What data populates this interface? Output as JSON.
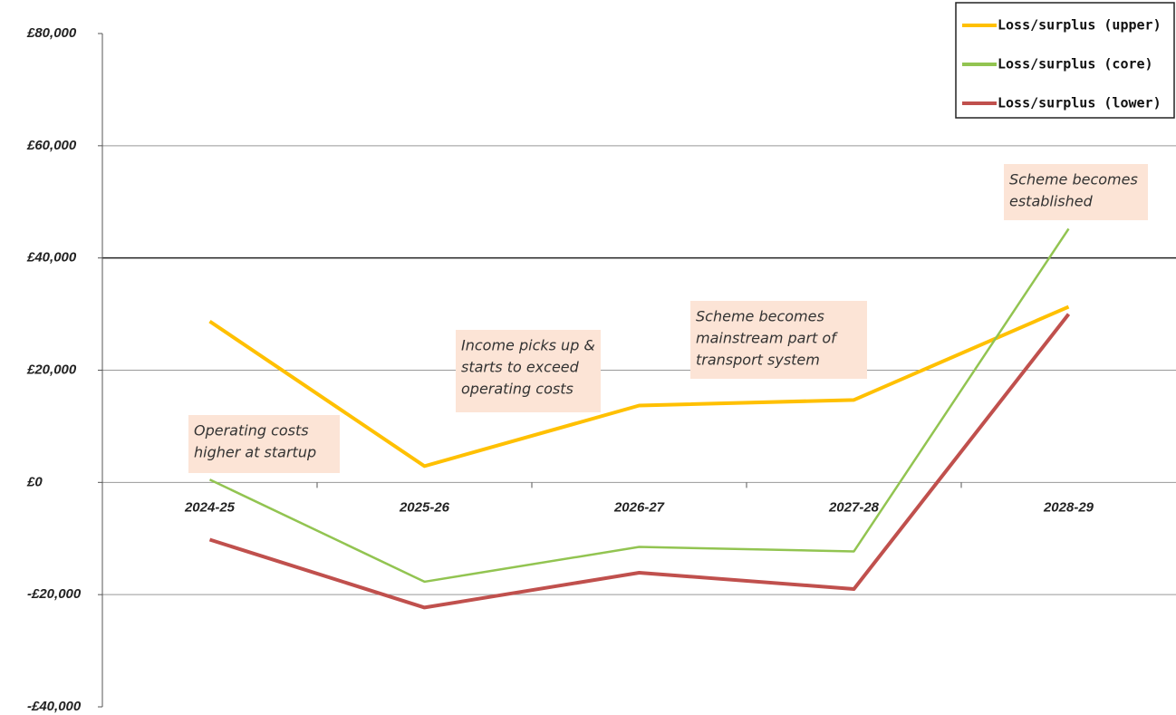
{
  "chart_data": {
    "type": "line",
    "categories": [
      "2024-25",
      "2025-26",
      "2026-27",
      "2027-28",
      "2028-29"
    ],
    "series": [
      {
        "name": "Loss/surplus (upper)",
        "color": "#ffc000",
        "values": [
          28700,
          2900,
          13700,
          14700,
          31300
        ]
      },
      {
        "name": "Loss/surplus (core)",
        "color": "#92c451",
        "values": [
          500,
          -17700,
          -11500,
          -12300,
          45200
        ]
      },
      {
        "name": "Loss/surplus (lower)",
        "color": "#c0504d",
        "values": [
          -10200,
          -22300,
          -16100,
          -19000,
          30000
        ]
      }
    ],
    "ylim": [
      -40000,
      80000
    ],
    "yticks": [
      {
        "value": -40000,
        "label": "-£40,000"
      },
      {
        "value": -20000,
        "label": "-£20,000"
      },
      {
        "value": 0,
        "label": "£0"
      },
      {
        "value": 20000,
        "label": "£20,000"
      },
      {
        "value": 40000,
        "label": "£40,000"
      },
      {
        "value": 60000,
        "label": "£60,000"
      },
      {
        "value": 80000,
        "label": "£80,000"
      }
    ],
    "grid": true,
    "legend": "top-right",
    "annotations": [
      {
        "lines": [
          "Operating costs",
          "higher at startup"
        ]
      },
      {
        "lines": [
          "Income picks up &",
          "starts to exceed",
          "operating costs"
        ]
      },
      {
        "lines": [
          "Scheme becomes",
          "mainstream part of",
          "transport system"
        ]
      },
      {
        "lines": [
          "Scheme becomes",
          "established"
        ]
      }
    ]
  }
}
